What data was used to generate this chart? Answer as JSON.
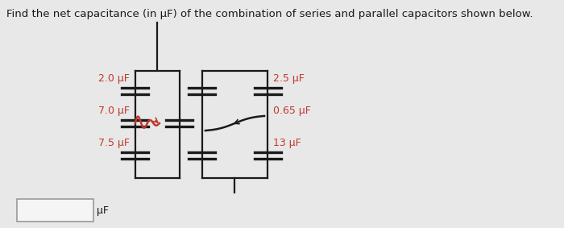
{
  "title": "Find the net capacitance (in μF) of the combination of series and parallel capacitors shown below.",
  "title_fontsize": 9.5,
  "bg_color": "#e8e8e8",
  "panel_color": "#f5f5f5",
  "text_color": "#1a1a1a",
  "red_color": "#c0392b",
  "labels_left": [
    "2.0 μF",
    "7.0 μF",
    "7.5 μF"
  ],
  "labels_right": [
    "2.5 μF",
    "0.65 μF",
    "13 μF"
  ],
  "answer_box_label": "μF"
}
